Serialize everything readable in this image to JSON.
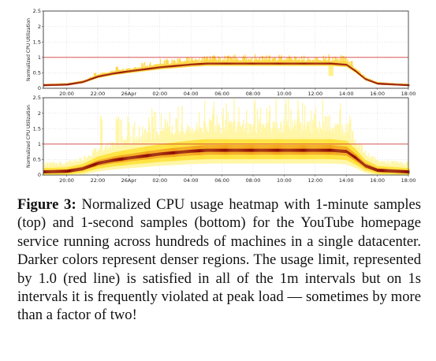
{
  "chart_data": [
    {
      "type": "heatmap",
      "ylabel": "Normalized CPU Utilization",
      "yticks": [
        "0",
        "0.5",
        "1",
        "1.5",
        "2",
        "2.5"
      ],
      "ylim": [
        0,
        2.5
      ],
      "xticks": [
        "20:00",
        "22:00",
        "26Apr",
        "02:00",
        "04:00",
        "06:00",
        "08:00",
        "10:00",
        "12:00",
        "14:00",
        "16:00",
        "18:00"
      ],
      "xlim_hours": [
        18.5,
        42.0
      ],
      "limit_line": 1.0,
      "limit_color": "#d23a3a",
      "density": "narrow",
      "median_profile": [
        [
          18.5,
          0.1
        ],
        [
          20.0,
          0.12
        ],
        [
          21.0,
          0.2
        ],
        [
          22.0,
          0.38
        ],
        [
          23.0,
          0.48
        ],
        [
          24.0,
          0.55
        ],
        [
          26.0,
          0.68
        ],
        [
          28.0,
          0.77
        ],
        [
          29.0,
          0.8
        ],
        [
          37.0,
          0.8
        ],
        [
          38.0,
          0.76
        ],
        [
          38.6,
          0.55
        ],
        [
          39.2,
          0.3
        ],
        [
          40.0,
          0.15
        ],
        [
          42.0,
          0.1
        ]
      ],
      "spikes": [
        [
          21.8,
          0.15
        ],
        [
          23.2,
          0.2
        ]
      ],
      "dips": [
        [
          36.8,
          37.1
        ]
      ]
    },
    {
      "type": "heatmap",
      "ylabel": "Normalized CPU Utilization",
      "yticks": [
        "0",
        "0.5",
        "1",
        "1.5",
        "2",
        "2.5"
      ],
      "ylim": [
        0,
        2.5
      ],
      "xticks": [
        "20:00",
        "22:00",
        "26Apr",
        "02:00",
        "04:00",
        "06:00",
        "08:00",
        "10:00",
        "12:00",
        "14:00",
        "16:00",
        "18:00"
      ],
      "xlim_hours": [
        18.5,
        42.0
      ],
      "limit_line": 1.0,
      "limit_color": "#d23a3a",
      "density": "wide",
      "median_profile": [
        [
          18.5,
          0.1
        ],
        [
          20.0,
          0.12
        ],
        [
          21.0,
          0.2
        ],
        [
          22.0,
          0.38
        ],
        [
          23.0,
          0.48
        ],
        [
          24.0,
          0.55
        ],
        [
          26.0,
          0.68
        ],
        [
          28.0,
          0.77
        ],
        [
          29.0,
          0.8
        ],
        [
          37.0,
          0.8
        ],
        [
          38.0,
          0.76
        ],
        [
          38.6,
          0.55
        ],
        [
          39.2,
          0.3
        ],
        [
          40.0,
          0.15
        ],
        [
          42.0,
          0.1
        ]
      ],
      "spikes": [
        [
          22.2,
          1.0
        ],
        [
          23.2,
          0.8
        ]
      ],
      "dips": []
    }
  ],
  "caption": {
    "label": "Figure 3:",
    "text": " Normalized CPU usage heatmap with 1-minute samples (top) and 1-second samples (bottom) for the YouTube homepage service running across hundreds of machines in a single datacenter. Darker colors represent denser regions. The usage limit, represented by 1.0 (red line) is satisfied in all of the 1m intervals but on 1s intervals it is frequently violated at peak load — sometimes by more than a factor of two!"
  }
}
